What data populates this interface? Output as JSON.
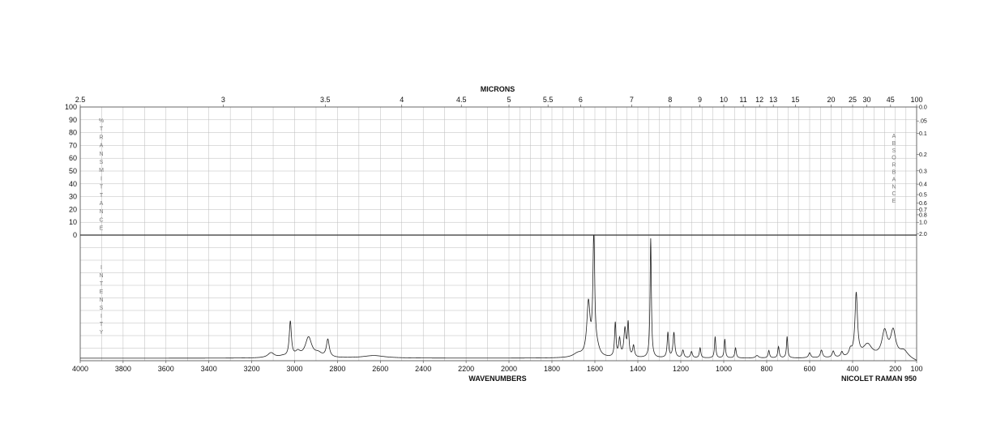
{
  "chart_data": {
    "type": "line",
    "title": "",
    "top_axis": {
      "title": "MICRONS",
      "ticks": [
        "2.5",
        "3",
        "3.5",
        "4",
        "4.5",
        "5",
        "5.5",
        "6",
        "7",
        "8",
        "9",
        "10",
        "11",
        "12",
        "13",
        "15",
        "20",
        "25",
        "30",
        "45",
        "100"
      ]
    },
    "bottom_axis": {
      "title": "WAVENUMBERS",
      "xlim": [
        4000,
        100
      ],
      "ticks": [
        "4000",
        "3800",
        "3600",
        "3400",
        "3200",
        "3000",
        "2800",
        "2600",
        "2400",
        "2200",
        "2000",
        "1800",
        "1600",
        "1400",
        "1200",
        "1000",
        "800",
        "600",
        "400",
        "200",
        "100"
      ]
    },
    "left_axis": {
      "title": "%TRANSMITTANCE",
      "ticks": [
        "100",
        "90",
        "80",
        "70",
        "60",
        "50",
        "40",
        "30",
        "20",
        "10",
        "0"
      ]
    },
    "right_axis": {
      "title": "ABSORBANCE",
      "ticks": [
        "0.0",
        ".05",
        "0.1",
        "0.2",
        "0.3",
        "0.4",
        "0.5",
        "0.6",
        "0.7",
        "0.8",
        "1.0",
        "2.0"
      ]
    },
    "lower_label": "INTENSITY",
    "instrument": "NICOLET RAMAN 950",
    "series": [
      {
        "color": "#222222",
        "baseline": 0.02,
        "peaks": [
          {
            "x": 3110,
            "height": 0.04,
            "width": 18
          },
          {
            "x": 3056,
            "height": 0.01,
            "width": 20
          },
          {
            "x": 3020,
            "height": 0.28,
            "width": 6
          },
          {
            "x": 2985,
            "height": 0.04,
            "width": 14
          },
          {
            "x": 2935,
            "height": 0.16,
            "width": 18
          },
          {
            "x": 2890,
            "height": 0.03,
            "width": 20
          },
          {
            "x": 2845,
            "height": 0.14,
            "width": 8
          },
          {
            "x": 2630,
            "height": 0.02,
            "width": 60
          },
          {
            "x": 1680,
            "height": 0.03,
            "width": 25
          },
          {
            "x": 1630,
            "height": 0.42,
            "width": 9
          },
          {
            "x": 1605,
            "height": 0.95,
            "width": 5
          },
          {
            "x": 1590,
            "height": 0.06,
            "width": 14
          },
          {
            "x": 1505,
            "height": 0.27,
            "width": 4
          },
          {
            "x": 1485,
            "height": 0.14,
            "width": 5
          },
          {
            "x": 1460,
            "height": 0.22,
            "width": 6
          },
          {
            "x": 1445,
            "height": 0.26,
            "width": 4
          },
          {
            "x": 1420,
            "height": 0.09,
            "width": 5
          },
          {
            "x": 1340,
            "height": 0.95,
            "width": 3.5
          },
          {
            "x": 1260,
            "height": 0.2,
            "width": 4
          },
          {
            "x": 1232,
            "height": 0.2,
            "width": 5
          },
          {
            "x": 1190,
            "height": 0.06,
            "width": 5
          },
          {
            "x": 1150,
            "height": 0.05,
            "width": 5
          },
          {
            "x": 1110,
            "height": 0.08,
            "width": 4
          },
          {
            "x": 1040,
            "height": 0.17,
            "width": 3.5
          },
          {
            "x": 995,
            "height": 0.15,
            "width": 3.5
          },
          {
            "x": 945,
            "height": 0.08,
            "width": 4
          },
          {
            "x": 845,
            "height": 0.02,
            "width": 8
          },
          {
            "x": 790,
            "height": 0.06,
            "width": 4
          },
          {
            "x": 745,
            "height": 0.09,
            "width": 4
          },
          {
            "x": 705,
            "height": 0.17,
            "width": 3.5
          },
          {
            "x": 600,
            "height": 0.04,
            "width": 6
          },
          {
            "x": 545,
            "height": 0.06,
            "width": 6
          },
          {
            "x": 490,
            "height": 0.05,
            "width": 6
          },
          {
            "x": 450,
            "height": 0.04,
            "width": 6
          },
          {
            "x": 410,
            "height": 0.05,
            "width": 8
          },
          {
            "x": 383,
            "height": 0.5,
            "width": 7
          },
          {
            "x": 330,
            "height": 0.1,
            "width": 25
          },
          {
            "x": 250,
            "height": 0.2,
            "width": 15
          },
          {
            "x": 210,
            "height": 0.2,
            "width": 14
          },
          {
            "x": 160,
            "height": 0.05,
            "width": 25
          }
        ]
      }
    ]
  }
}
